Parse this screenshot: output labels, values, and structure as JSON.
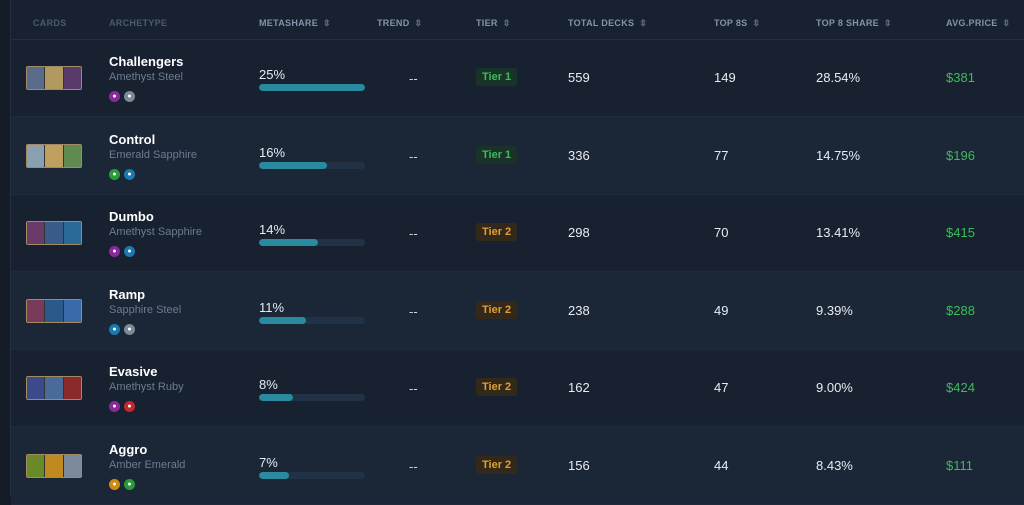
{
  "headers": {
    "cards": "CARDS",
    "archetype": "ARCHETYPE",
    "metashare": "METASHARE",
    "trend": "TREND",
    "tier": "TIER",
    "total_decks": "TOTAL DECKS",
    "top8s": "TOP 8S",
    "top8_share": "TOP 8 SHARE",
    "avg_price": "AVG.PRICE",
    "sort_icon": "⇳"
  },
  "ink_colors": {
    "Amethyst": "#8a2a9a",
    "Steel": "#7d8a96",
    "Emerald": "#2a9a3a",
    "Sapphire": "#1a7ab0",
    "Ruby": "#c02a2a",
    "Amber": "#d08a10"
  },
  "tier_colors": {
    "Tier 1": "#3cbc5a",
    "Tier 2": "#e0a030"
  },
  "rows": [
    {
      "name": "Challengers",
      "inks": "Amethyst Steel",
      "ink_list": [
        "Amethyst",
        "Steel"
      ],
      "metashare": "25%",
      "metashare_value": 25,
      "trend": "--",
      "tier": "Tier 1",
      "total_decks": "559",
      "top8s": "149",
      "top8_share": "28.54%",
      "avg_price": "$381"
    },
    {
      "name": "Control",
      "inks": "Emerald Sapphire",
      "ink_list": [
        "Emerald",
        "Sapphire"
      ],
      "metashare": "16%",
      "metashare_value": 16,
      "trend": "--",
      "tier": "Tier 1",
      "total_decks": "336",
      "top8s": "77",
      "top8_share": "14.75%",
      "avg_price": "$196"
    },
    {
      "name": "Dumbo",
      "inks": "Amethyst Sapphire",
      "ink_list": [
        "Amethyst",
        "Sapphire"
      ],
      "metashare": "14%",
      "metashare_value": 14,
      "trend": "--",
      "tier": "Tier 2",
      "total_decks": "298",
      "top8s": "70",
      "top8_share": "13.41%",
      "avg_price": "$415"
    },
    {
      "name": "Ramp",
      "inks": "Sapphire Steel",
      "ink_list": [
        "Sapphire",
        "Steel"
      ],
      "metashare": "11%",
      "metashare_value": 11,
      "trend": "--",
      "tier": "Tier 2",
      "total_decks": "238",
      "top8s": "49",
      "top8_share": "9.39%",
      "avg_price": "$288"
    },
    {
      "name": "Evasive",
      "inks": "Amethyst Ruby",
      "ink_list": [
        "Amethyst",
        "Ruby"
      ],
      "metashare": "8%",
      "metashare_value": 8,
      "trend": "--",
      "tier": "Tier 2",
      "total_decks": "162",
      "top8s": "47",
      "top8_share": "9.00%",
      "avg_price": "$424"
    },
    {
      "name": "Aggro",
      "inks": "Amber Emerald",
      "ink_list": [
        "Amber",
        "Emerald"
      ],
      "metashare": "7%",
      "metashare_value": 7,
      "trend": "--",
      "tier": "Tier 2",
      "total_decks": "156",
      "top8s": "44",
      "top8_share": "8.43%",
      "avg_price": "$111"
    }
  ]
}
